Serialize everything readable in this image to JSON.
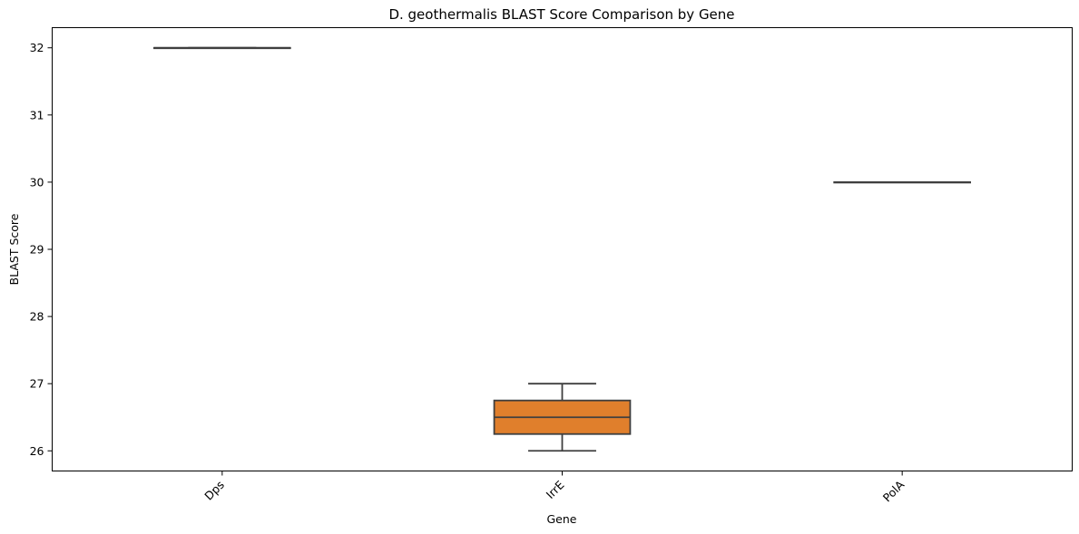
{
  "chart_data": {
    "type": "box",
    "title": "D. geothermalis BLAST Score Comparison by Gene",
    "xlabel": "Gene",
    "ylabel": "BLAST Score",
    "categories": [
      "Dps",
      "IrrE",
      "PolA"
    ],
    "ylim": [
      25.7,
      32.3
    ],
    "yticks": [
      26,
      27,
      28,
      29,
      30,
      31,
      32
    ],
    "grid": false,
    "boxes": [
      {
        "category": "Dps",
        "whisker_low": 32,
        "q1": 32,
        "median": 32,
        "q3": 32,
        "whisker_high": 32,
        "color": "#1f77b4"
      },
      {
        "category": "IrrE",
        "whisker_low": 26,
        "q1": 26.25,
        "median": 26.5,
        "q3": 26.75,
        "whisker_high": 27,
        "color": "#e07f2c"
      },
      {
        "category": "PolA",
        "whisker_low": 30,
        "q1": 30,
        "median": 30,
        "q3": 30,
        "whisker_high": 30,
        "color": "#2ca02c"
      }
    ],
    "line_color": "#3f3f3f"
  }
}
